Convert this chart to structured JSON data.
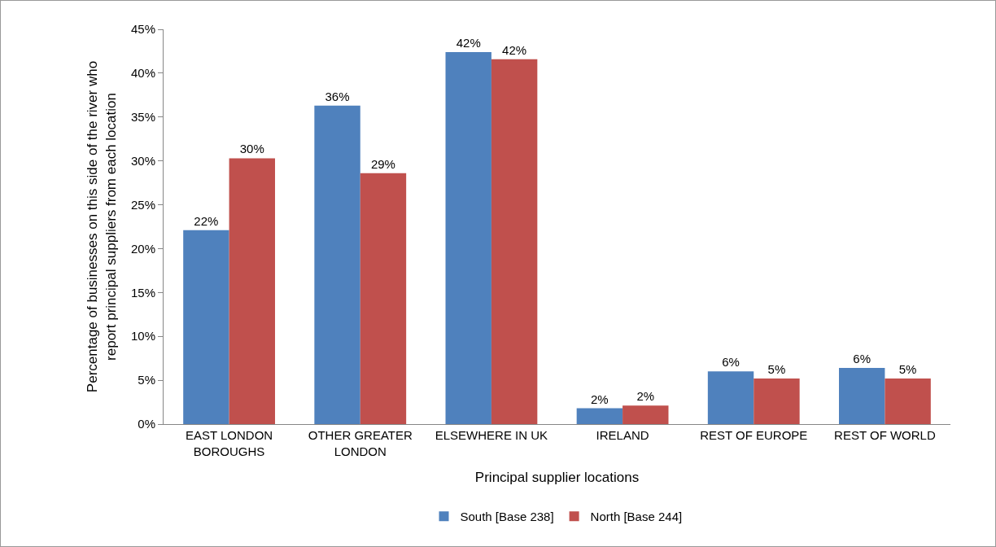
{
  "chart_data": {
    "type": "bar",
    "xlabel": "Principal supplier locations",
    "ylabel": "Percentage of businesses on this side of the river who\nreport principal suppliers from each location",
    "categories": [
      "EAST LONDON\nBOROUGHS",
      "OTHER GREATER\nLONDON",
      "ELSEWHERE IN UK",
      "IRELAND",
      "REST OF EUROPE",
      "REST OF WORLD"
    ],
    "series": [
      {
        "name": "South [Base 238]",
        "color": "#4f81bd",
        "values": [
          22.1,
          36.3,
          42.4,
          1.8,
          6.0,
          6.4
        ],
        "value_labels": [
          "22%",
          "36%",
          "42%",
          "2%",
          "6%",
          "6%"
        ]
      },
      {
        "name": "North [Base 244]",
        "color": "#c0504d",
        "values": [
          30.3,
          28.6,
          41.6,
          2.1,
          5.2,
          5.2
        ],
        "value_labels": [
          "30%",
          "29%",
          "42%",
          "2%",
          "5%",
          "5%"
        ]
      }
    ],
    "ylim": [
      0,
      45
    ],
    "yticks": [
      {
        "value": 0,
        "label": "0%"
      },
      {
        "value": 5,
        "label": "5%"
      },
      {
        "value": 10,
        "label": "10%"
      },
      {
        "value": 15,
        "label": "15%"
      },
      {
        "value": 20,
        "label": "20%"
      },
      {
        "value": 25,
        "label": "25%"
      },
      {
        "value": 30,
        "label": "30%"
      },
      {
        "value": 35,
        "label": "35%"
      },
      {
        "value": 40,
        "label": "40%"
      },
      {
        "value": 45,
        "label": "45%"
      }
    ],
    "grid": false,
    "legend": "bottom"
  }
}
